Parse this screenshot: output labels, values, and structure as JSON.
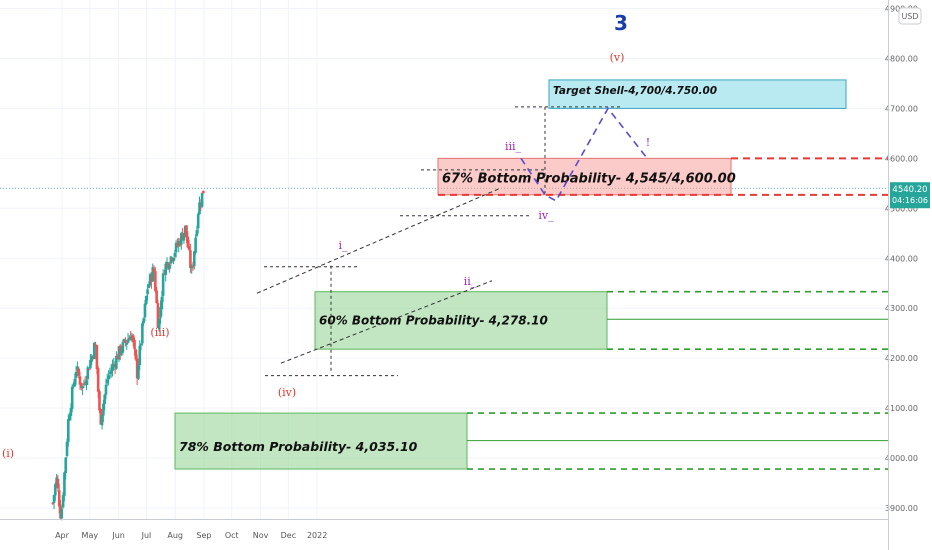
{
  "chart_data": {
    "type": "candlestick",
    "symbol_currency": "USD",
    "top_number": "3",
    "ylim": [
      3880,
      4910
    ],
    "y_ticks": [
      "3900.00",
      "4000.00",
      "4100.00",
      "4200.00",
      "4300.00",
      "4400.00",
      "4500.00",
      "4600.00",
      "4700.00",
      "4800.00",
      "4900.00"
    ],
    "x_ticks": [
      "Apr",
      "May",
      "Jun",
      "Jul",
      "Aug",
      "Sep",
      "Oct",
      "Nov",
      "Dec",
      "2022"
    ],
    "last_price": "4540.20",
    "countdown": "04:16:06",
    "price_path": [
      {
        "x": "Mar 22",
        "y": 3910
      },
      {
        "x": "Mar 26",
        "y": 3960
      },
      {
        "x": "Mar 31",
        "y": 3880
      },
      {
        "x": "Apr 8",
        "y": 4080
      },
      {
        "x": "Apr 16",
        "y": 4180
      },
      {
        "x": "Apr 23",
        "y": 4140
      },
      {
        "x": "May 7",
        "y": 4230
      },
      {
        "x": "May 12",
        "y": 4070
      },
      {
        "x": "May 20",
        "y": 4160
      },
      {
        "x": "Jun 1",
        "y": 4210
      },
      {
        "x": "Jun 15",
        "y": 4250
      },
      {
        "x": "Jun 21",
        "y": 4170
      },
      {
        "x": "Jul 2",
        "y": 4340
      },
      {
        "x": "Jul 9",
        "y": 4380
      },
      {
        "x": "Jul 14",
        "y": 4260
      },
      {
        "x": "Jul 20",
        "y": 4380
      },
      {
        "x": "Aug 2",
        "y": 4420
      },
      {
        "x": "Aug 12",
        "y": 4460
      },
      {
        "x": "Aug 17",
        "y": 4390
      },
      {
        "x": "Aug 19",
        "y": 4370
      },
      {
        "x": "Aug 26",
        "y": 4500
      },
      {
        "x": "Sep 1",
        "y": 4540
      }
    ],
    "zones": [
      {
        "label": "Target Shell-4,700/4.750.00",
        "low": 4700,
        "high": 4757,
        "color": "#7fd8e8"
      },
      {
        "label": "67% Bottom Probability- 4,545/4,600.00",
        "low": 4527,
        "high": 4600,
        "color": "#f5a09c"
      },
      {
        "label": "60% Bottom Probability- 4,278.10",
        "low": 4218,
        "high": 4333,
        "color": "#8fd18f"
      },
      {
        "label": "78% Bottom Probability- 4,035.10",
        "low": 3978,
        "high": 4090,
        "color": "#8fd18f"
      }
    ],
    "wave_labels": [
      {
        "text": "(i)",
        "color": "red"
      },
      {
        "text": "(iii)",
        "color": "red"
      },
      {
        "text": "(iv)",
        "color": "red"
      },
      {
        "text": "(v)",
        "color": "red"
      },
      {
        "text": "i_",
        "color": "purple"
      },
      {
        "text": "ii_",
        "color": "purple"
      },
      {
        "text": "iii_",
        "color": "purple"
      },
      {
        "text": "iv_",
        "color": "purple"
      },
      {
        "text": "!",
        "color": "purple"
      }
    ],
    "colors": {
      "up": "#26a69a",
      "down": "#ef5350",
      "green_line": "#2e9e2e",
      "red_line": "#e53935",
      "wave_red": "#e03a2f",
      "wave_purple": "#9c27b0",
      "projection": "#5c4bd1",
      "last_price_bg": "#26a69a",
      "top_number": "#1a3ea8"
    }
  }
}
